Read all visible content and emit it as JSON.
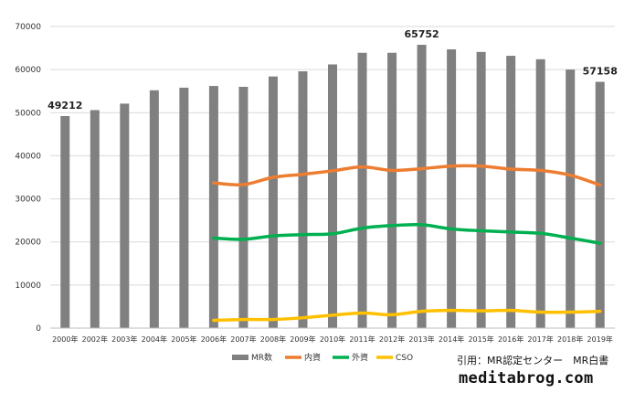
{
  "chart_data": {
    "type": "bar",
    "categories": [
      "2000年",
      "2002年",
      "2003年",
      "2004年",
      "2005年",
      "2006年",
      "2007年",
      "2008年",
      "2009年",
      "2010年",
      "2011年",
      "2012年",
      "2013年",
      "2014年",
      "2015年",
      "2016年",
      "2017年",
      "2018年",
      "2019年"
    ],
    "ylim": [
      0,
      70000
    ],
    "yticks": [
      0,
      10000,
      20000,
      30000,
      40000,
      50000,
      60000,
      70000
    ],
    "grid": true,
    "legend_position": "bottom",
    "series": [
      {
        "name": "MR数",
        "type": "bar",
        "color": "#808080",
        "values": [
          49212,
          50600,
          52100,
          55200,
          55800,
          56200,
          56000,
          58400,
          59600,
          61200,
          63900,
          63900,
          65752,
          64700,
          64100,
          63200,
          62400,
          60000,
          57158
        ]
      },
      {
        "name": "内資",
        "type": "line",
        "color": "#ED7D31",
        "values": [
          null,
          null,
          null,
          null,
          null,
          33700,
          33300,
          35000,
          35700,
          36500,
          37400,
          36600,
          37000,
          37600,
          37600,
          36900,
          36600,
          35500,
          33200
        ]
      },
      {
        "name": "外資",
        "type": "line",
        "color": "#00B050",
        "values": [
          null,
          null,
          null,
          null,
          null,
          20900,
          20600,
          21400,
          21700,
          21900,
          23200,
          23800,
          24000,
          23000,
          22600,
          22300,
          22000,
          20900,
          19700
        ]
      },
      {
        "name": "CSO",
        "type": "line",
        "color": "#FFC000",
        "values": [
          null,
          null,
          null,
          null,
          null,
          1800,
          2000,
          2000,
          2400,
          3000,
          3500,
          3100,
          3900,
          4100,
          4000,
          4100,
          3700,
          3700,
          3900
        ]
      }
    ],
    "data_labels": [
      {
        "category_index": 0,
        "text": "49212"
      },
      {
        "category_index": 12,
        "text": "65752"
      },
      {
        "category_index": 18,
        "text": "57158"
      }
    ]
  },
  "credit": {
    "source": "引用：MR認定センター　MR白書",
    "site": "meditabrog.com"
  }
}
